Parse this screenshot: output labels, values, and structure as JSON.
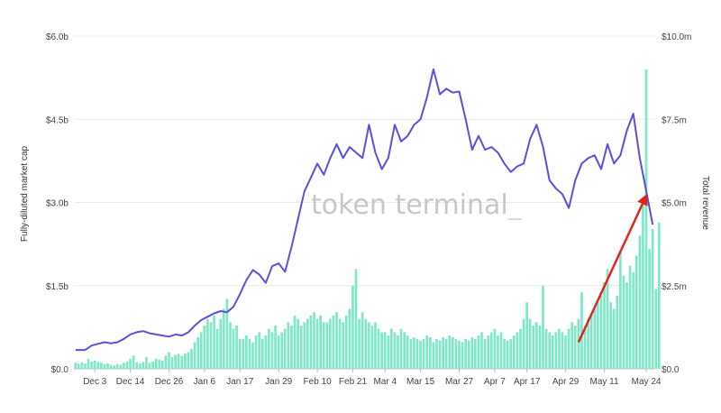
{
  "chart_data": {
    "type": "bar+line",
    "watermark": {
      "brand": "token terminal",
      "suffix": "_"
    },
    "ylabel_left": "Fully-diluted market cap",
    "ylabel_right": "Total revenue",
    "left_axis": {
      "unit": "billion USD",
      "ylim": [
        0,
        6.0
      ],
      "ticks": [
        {
          "value": 0,
          "label": "$0.0"
        },
        {
          "value": 1.5,
          "label": "$1.5b"
        },
        {
          "value": 3.0,
          "label": "$3.0b"
        },
        {
          "value": 4.5,
          "label": "$4.5b"
        },
        {
          "value": 6.0,
          "label": "$6.0b"
        }
      ]
    },
    "right_axis": {
      "unit": "million USD",
      "ylim": [
        0,
        10.0
      ],
      "ticks": [
        {
          "value": 0,
          "label": "$0.0"
        },
        {
          "value": 2.5,
          "label": "$2.5m"
        },
        {
          "value": 5.0,
          "label": "$5.0m"
        },
        {
          "value": 7.5,
          "label": "$7.5m"
        },
        {
          "value": 10.0,
          "label": "$10.0m"
        }
      ]
    },
    "x_ticks": [
      {
        "index": 6,
        "label": "Dec 3"
      },
      {
        "index": 17,
        "label": "Dec 14"
      },
      {
        "index": 29,
        "label": "Dec 26"
      },
      {
        "index": 40,
        "label": "Jan 6"
      },
      {
        "index": 51,
        "label": "Jan 17"
      },
      {
        "index": 63,
        "label": "Jan 29"
      },
      {
        "index": 75,
        "label": "Feb 10"
      },
      {
        "index": 86,
        "label": "Feb 21"
      },
      {
        "index": 96,
        "label": "Mar 4"
      },
      {
        "index": 107,
        "label": "Mar 15"
      },
      {
        "index": 119,
        "label": "Mar 27"
      },
      {
        "index": 130,
        "label": "Apr 7"
      },
      {
        "index": 140,
        "label": "Apr 17"
      },
      {
        "index": 152,
        "label": "Apr 29"
      },
      {
        "index": 164,
        "label": "May 11"
      },
      {
        "index": 177,
        "label": "May 24"
      }
    ],
    "n_days": 180,
    "series": [
      {
        "name": "Fully-diluted market cap",
        "kind": "line",
        "axis": "left",
        "color": "#5a4fe0",
        "points": [
          [
            0,
            0.34
          ],
          [
            3,
            0.34
          ],
          [
            5,
            0.42
          ],
          [
            7,
            0.45
          ],
          [
            9,
            0.48
          ],
          [
            11,
            0.46
          ],
          [
            13,
            0.48
          ],
          [
            15,
            0.54
          ],
          [
            17,
            0.62
          ],
          [
            19,
            0.66
          ],
          [
            21,
            0.68
          ],
          [
            23,
            0.64
          ],
          [
            25,
            0.62
          ],
          [
            27,
            0.6
          ],
          [
            29,
            0.58
          ],
          [
            31,
            0.62
          ],
          [
            33,
            0.6
          ],
          [
            35,
            0.66
          ],
          [
            37,
            0.78
          ],
          [
            39,
            0.88
          ],
          [
            41,
            0.94
          ],
          [
            43,
            1.0
          ],
          [
            45,
            1.04
          ],
          [
            47,
            1.02
          ],
          [
            49,
            1.12
          ],
          [
            51,
            1.35
          ],
          [
            53,
            1.6
          ],
          [
            55,
            1.78
          ],
          [
            57,
            1.7
          ],
          [
            59,
            1.55
          ],
          [
            61,
            1.85
          ],
          [
            63,
            1.9
          ],
          [
            65,
            1.75
          ],
          [
            67,
            2.2
          ],
          [
            69,
            2.7
          ],
          [
            71,
            3.2
          ],
          [
            73,
            3.45
          ],
          [
            75,
            3.7
          ],
          [
            77,
            3.5
          ],
          [
            79,
            3.8
          ],
          [
            81,
            4.05
          ],
          [
            83,
            3.8
          ],
          [
            85,
            4.0
          ],
          [
            87,
            3.9
          ],
          [
            89,
            3.8
          ],
          [
            91,
            4.4
          ],
          [
            93,
            3.9
          ],
          [
            95,
            3.6
          ],
          [
            97,
            3.8
          ],
          [
            99,
            4.4
          ],
          [
            101,
            4.1
          ],
          [
            103,
            4.2
          ],
          [
            105,
            4.4
          ],
          [
            107,
            4.5
          ],
          [
            109,
            4.9
          ],
          [
            111,
            5.4
          ],
          [
            113,
            4.95
          ],
          [
            115,
            5.05
          ],
          [
            117,
            4.98
          ],
          [
            119,
            5.0
          ],
          [
            121,
            4.5
          ],
          [
            123,
            3.95
          ],
          [
            125,
            4.2
          ],
          [
            127,
            3.95
          ],
          [
            129,
            4.0
          ],
          [
            131,
            3.9
          ],
          [
            133,
            3.7
          ],
          [
            135,
            3.55
          ],
          [
            137,
            3.65
          ],
          [
            139,
            3.7
          ],
          [
            141,
            4.15
          ],
          [
            143,
            4.4
          ],
          [
            145,
            4.0
          ],
          [
            147,
            3.4
          ],
          [
            149,
            3.25
          ],
          [
            151,
            3.15
          ],
          [
            153,
            2.9
          ],
          [
            155,
            3.4
          ],
          [
            157,
            3.7
          ],
          [
            159,
            3.8
          ],
          [
            161,
            3.85
          ],
          [
            163,
            3.6
          ],
          [
            165,
            4.05
          ],
          [
            167,
            3.7
          ],
          [
            169,
            3.85
          ],
          [
            171,
            4.3
          ],
          [
            173,
            4.6
          ],
          [
            175,
            3.8
          ],
          [
            177,
            3.2
          ],
          [
            179,
            2.6
          ]
        ]
      },
      {
        "name": "Total revenue",
        "kind": "bar",
        "axis": "right",
        "color": "#7ee8c8",
        "values": [
          0.18,
          0.15,
          0.2,
          0.16,
          0.3,
          0.22,
          0.25,
          0.2,
          0.18,
          0.14,
          0.16,
          0.12,
          0.1,
          0.14,
          0.12,
          0.18,
          0.22,
          0.3,
          0.4,
          0.2,
          0.16,
          0.2,
          0.35,
          0.18,
          0.22,
          0.3,
          0.28,
          0.25,
          0.4,
          0.5,
          0.35,
          0.42,
          0.45,
          0.38,
          0.46,
          0.5,
          0.6,
          0.8,
          0.95,
          1.1,
          1.3,
          1.5,
          1.4,
          1.6,
          1.2,
          1.5,
          1.8,
          2.1,
          1.4,
          1.2,
          1.3,
          0.9,
          0.9,
          1.0,
          0.9,
          0.8,
          1.0,
          1.1,
          0.9,
          1.0,
          1.2,
          1.1,
          1.3,
          1.0,
          1.1,
          1.2,
          1.4,
          1.3,
          1.6,
          1.5,
          1.3,
          1.4,
          1.5,
          1.6,
          1.7,
          1.5,
          1.6,
          1.4,
          1.4,
          1.5,
          1.6,
          1.7,
          1.5,
          1.4,
          1.6,
          1.8,
          2.5,
          3.0,
          1.5,
          1.7,
          1.5,
          1.4,
          1.3,
          1.4,
          1.2,
          1.1,
          1.1,
          1.0,
          1.2,
          1.1,
          1.0,
          1.2,
          1.1,
          1.0,
          0.9,
          0.95,
          0.9,
          0.85,
          0.9,
          1.0,
          0.95,
          0.8,
          0.9,
          0.85,
          0.95,
          0.9,
          1.0,
          0.95,
          0.9,
          0.85,
          0.8,
          0.9,
          0.85,
          0.95,
          0.9,
          1.0,
          1.1,
          0.9,
          1.0,
          1.1,
          1.2,
          1.0,
          1.1,
          0.9,
          0.85,
          0.9,
          1.0,
          1.1,
          1.2,
          1.5,
          2.0,
          1.5,
          1.3,
          1.4,
          1.3,
          2.5,
          1.2,
          1.1,
          1.0,
          1.1,
          1.2,
          1.1,
          1.0,
          1.2,
          1.4,
          1.3,
          1.5,
          2.3,
          1.3,
          1.5,
          1.6,
          1.8,
          2.0,
          2.2,
          2.6,
          3.0,
          2.0,
          1.8,
          2.2,
          3.5,
          2.8,
          2.6,
          3.1,
          2.9,
          3.4,
          4.0,
          5.0,
          9.0,
          3.6,
          4.2,
          2.4,
          4.4
        ]
      }
    ],
    "annotation": {
      "type": "arrow",
      "color": "#e0241c",
      "from": {
        "day": 156,
        "rev": 0.8
      },
      "to": {
        "day": 177,
        "rev": 5.2
      }
    }
  }
}
